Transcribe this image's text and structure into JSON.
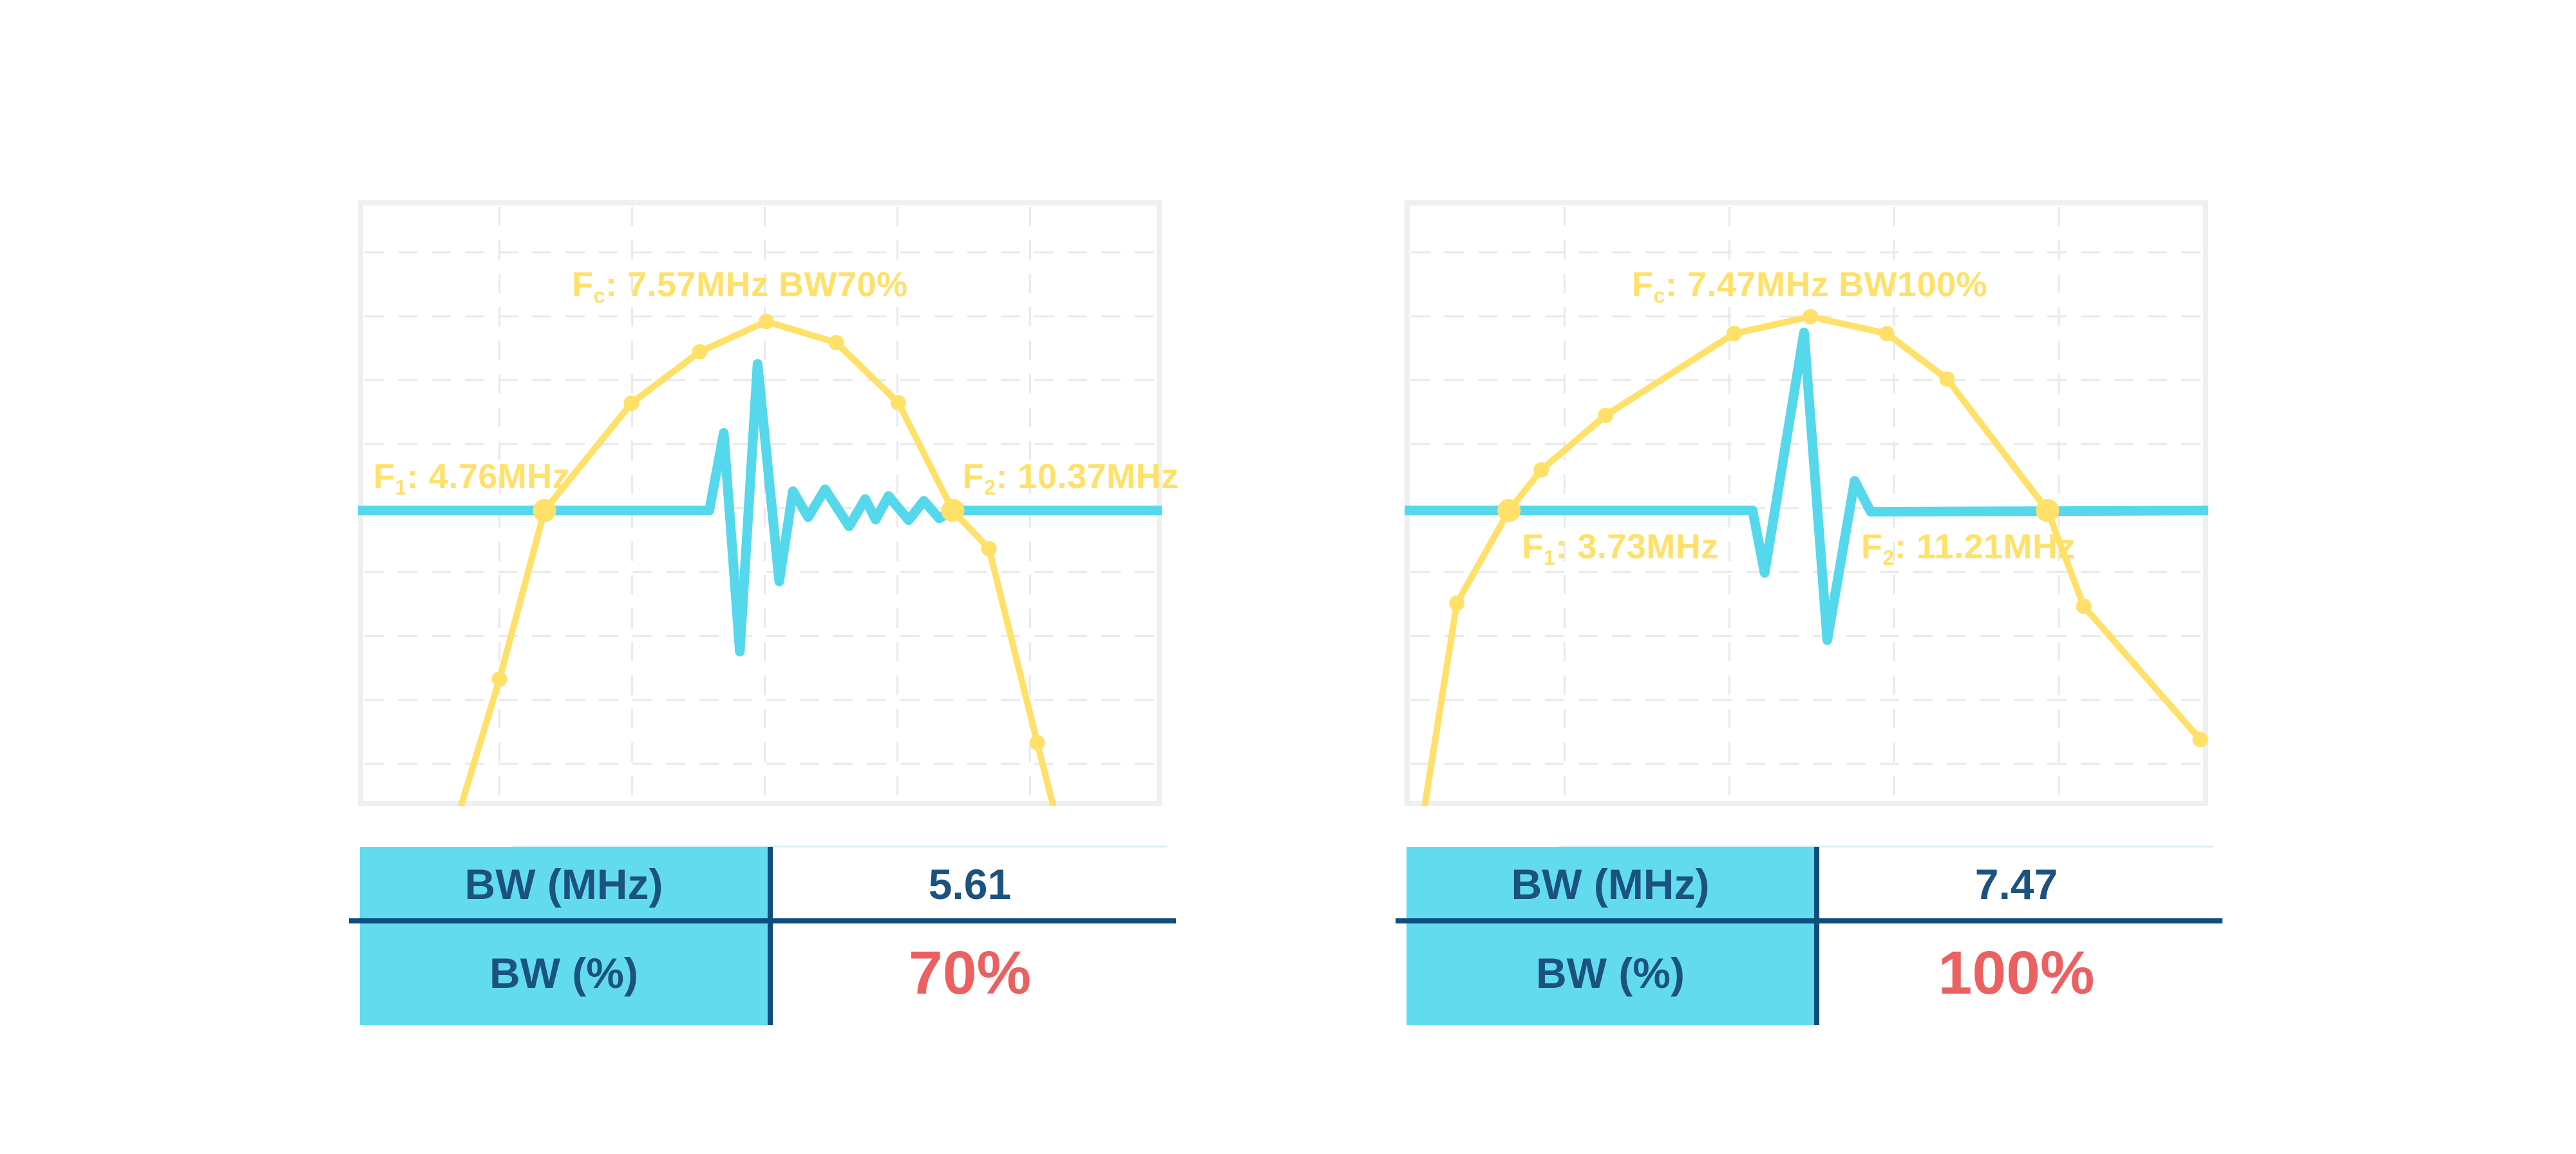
{
  "colors": {
    "background": "#FFFFFF",
    "yellow": "#FFE169",
    "cyan": "#55D8EC",
    "plot_border": "#EFEFEF",
    "grid": "#E9E9E9",
    "table_fill": "#63DBEE",
    "navy_text": "#1B527F",
    "navy_line": "#0F4D7F",
    "red": "#EB6161",
    "table_topline": "#D8F0F8"
  },
  "chart_data": [
    {
      "id": "bw70",
      "type": "line",
      "title": "Fc: 7.57MHz BW70%",
      "center_frequency_mhz": 7.57,
      "f_low_mhz": 4.76,
      "f_high_mhz": 10.37,
      "bandwidth_mhz": 5.61,
      "bandwidth_pct": 70,
      "legend": "none",
      "grid": {
        "v_pct": [
          17.6,
          34.1,
          50.6,
          67.1,
          83.6
        ],
        "h_pct": [
          8.6,
          19.15,
          29.7,
          40.25,
          50.8,
          61.35,
          71.9,
          82.45,
          93.0
        ]
      },
      "baseline_pct": 51.2,
      "annotations": {
        "fc": {
          "prefix": "F",
          "subscript": "c",
          "text": ": 7.57MHz BW70%"
        },
        "f1": {
          "prefix": "F",
          "subscript": "1",
          "text": ": 4.76MHz"
        },
        "f2": {
          "prefix": "F",
          "subscript": "2",
          "text": ": 10.37MHz"
        }
      },
      "series": [
        {
          "name": "frequency-spectrum",
          "color": "yellow",
          "points_pct": [
            [
              12.8,
              100
            ],
            [
              17.6,
              79
            ],
            [
              23.2,
              51.2
            ],
            [
              34,
              33.5
            ],
            [
              42.5,
              25
            ],
            [
              50.8,
              20
            ],
            [
              59.5,
              23.5
            ],
            [
              67.2,
              33.4
            ],
            [
              74,
              51.2
            ],
            [
              78.5,
              57.5
            ],
            [
              84.5,
              89.5
            ],
            [
              86.5,
              100
            ]
          ],
          "markers_pct": [
            [
              17.6,
              79
            ],
            [
              34,
              33.5
            ],
            [
              42.5,
              25
            ],
            [
              50.8,
              20
            ],
            [
              59.5,
              23.5
            ],
            [
              67.2,
              33.4
            ],
            [
              78.5,
              57.5
            ],
            [
              84.5,
              89.5
            ]
          ],
          "band_edge_markers_pct": [
            [
              23.2,
              51.2
            ],
            [
              74,
              51.2
            ]
          ]
        },
        {
          "name": "pulse-echo-waveform",
          "color": "cyan",
          "points_pct": [
            [
              0,
              51.2
            ],
            [
              43.7,
              51.2
            ],
            [
              45.5,
              38.4
            ],
            [
              47.5,
              74.5
            ],
            [
              49.7,
              27
            ],
            [
              52.4,
              62.9
            ],
            [
              54.1,
              48
            ],
            [
              56,
              52.3
            ],
            [
              58.1,
              47.7
            ],
            [
              61.1,
              53.8
            ],
            [
              63.1,
              49.3
            ],
            [
              64.4,
              52.7
            ],
            [
              66,
              48.8
            ],
            [
              68.5,
              52.8
            ],
            [
              70.4,
              49.6
            ],
            [
              72.3,
              52.5
            ],
            [
              74,
              51.2
            ],
            [
              100,
              51.2
            ]
          ]
        }
      ],
      "table": {
        "rows": [
          {
            "label": "BW (MHz)",
            "value": "5.61"
          },
          {
            "label": "BW (%)",
            "value": "70%"
          }
        ]
      }
    },
    {
      "id": "bw100",
      "type": "line",
      "title": "Fc: 7.47MHz BW100%",
      "center_frequency_mhz": 7.47,
      "f_low_mhz": 3.73,
      "f_high_mhz": 11.21,
      "bandwidth_mhz": 7.47,
      "bandwidth_pct": 100,
      "legend": "none",
      "grid": {
        "v_pct": [
          19.9,
          40.4,
          60.9,
          81.4
        ],
        "h_pct": [
          8.6,
          19.15,
          29.7,
          40.25,
          50.8,
          61.35,
          71.9,
          82.45,
          93.0
        ]
      },
      "baseline_pct": 51.2,
      "annotations": {
        "fc": {
          "prefix": "F",
          "subscript": "c",
          "text": ": 7.47MHz BW100%"
        },
        "f1": {
          "prefix": "F",
          "subscript": "1",
          "text": ": 3.73MHz"
        },
        "f2": {
          "prefix": "F",
          "subscript": "2",
          "text": ": 11.21MHz"
        }
      },
      "series": [
        {
          "name": "frequency-spectrum",
          "color": "yellow",
          "points_pct": [
            [
              2.5,
              100
            ],
            [
              6.5,
              66.5
            ],
            [
              13,
              51.2
            ],
            [
              17,
              44.5
            ],
            [
              25,
              35.5
            ],
            [
              41,
              22
            ],
            [
              50.5,
              19.2
            ],
            [
              60,
              22
            ],
            [
              67.5,
              29.5
            ],
            [
              80,
              51.2
            ],
            [
              84.5,
              67
            ],
            [
              99,
              89
            ]
          ],
          "markers_pct": [
            [
              6.5,
              66.5
            ],
            [
              17,
              44.5
            ],
            [
              25,
              35.5
            ],
            [
              41,
              22
            ],
            [
              50.5,
              19.2
            ],
            [
              60,
              22
            ],
            [
              67.5,
              29.5
            ],
            [
              84.5,
              67
            ],
            [
              99,
              89
            ]
          ],
          "band_edge_markers_pct": [
            [
              13,
              51.2
            ],
            [
              80,
              51.2
            ]
          ]
        },
        {
          "name": "pulse-echo-waveform",
          "color": "cyan",
          "points_pct": [
            [
              0,
              51.2
            ],
            [
              43.3,
              51.2
            ],
            [
              44.8,
              61.5
            ],
            [
              49.7,
              21.8
            ],
            [
              52.6,
              72.6
            ],
            [
              56,
              46.3
            ],
            [
              58,
              51.4
            ],
            [
              100,
              51.2
            ]
          ]
        }
      ],
      "table": {
        "rows": [
          {
            "label": "BW (MHz)",
            "value": "7.47"
          },
          {
            "label": "BW (%)",
            "value": "100%"
          }
        ]
      }
    }
  ]
}
